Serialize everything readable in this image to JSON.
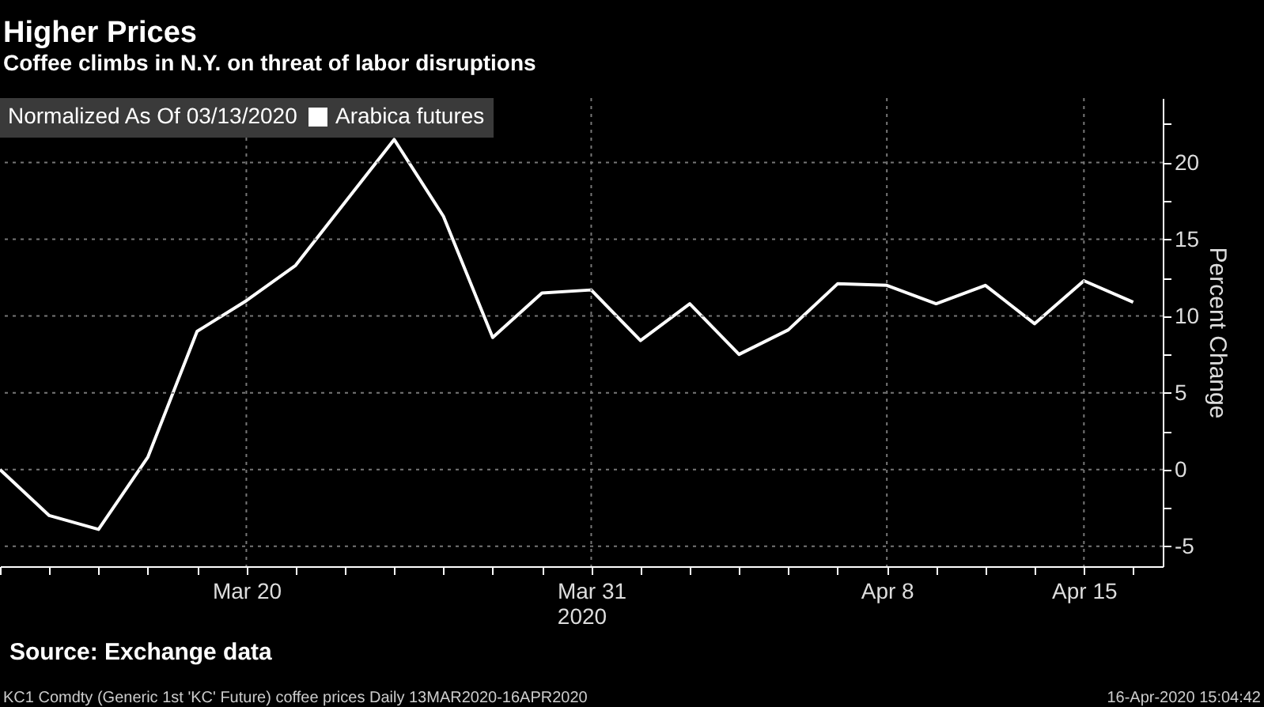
{
  "chart_data": {
    "type": "line",
    "title": "Higher Prices",
    "subtitle": "Coffee climbs in N.Y. on threat of labor disruptions",
    "legend_title": "Normalized As Of 03/13/2020",
    "ylabel": "Percent Change",
    "xlabel": "2020",
    "categories": [
      null,
      null,
      null,
      null,
      null,
      "Mar 20",
      null,
      null,
      null,
      null,
      null,
      null,
      "Mar 31",
      null,
      null,
      null,
      null,
      null,
      "Apr 8",
      null,
      null,
      null,
      "Apr 15",
      null
    ],
    "series": [
      {
        "name": "Arabica futures",
        "color": "#ffffff",
        "values": [
          0,
          -3.0,
          -3.9,
          0.8,
          9.0,
          11.0,
          13.3,
          17.4,
          21.5,
          16.5,
          8.6,
          11.5,
          11.7,
          8.4,
          10.8,
          7.5,
          9.1,
          12.1,
          12.0,
          10.8,
          12.0,
          9.5,
          12.3,
          10.9
        ]
      }
    ],
    "ylim": [
      -6.3,
      24.2
    ],
    "yticks": [
      -5,
      {
        "value": -2.5,
        "label": null
      },
      0,
      {
        "value": 2.5,
        "label": null
      },
      5,
      {
        "value": 7.5,
        "label": null
      },
      10,
      {
        "value": 12.5,
        "label": null
      },
      15,
      {
        "value": 17.5,
        "label": null
      },
      20,
      {
        "value": 22.5,
        "label": null
      }
    ],
    "grid": true,
    "legend": "top left",
    "line_style": "solid",
    "marker": "none",
    "annotations": [
      "Source: Exchange data",
      "KC1 Comdty (Generic 1st 'KC' Future) coffee prices  Daily 13MAR2020-16APR2020",
      "16-Apr-2020 15:04:42"
    ]
  }
}
